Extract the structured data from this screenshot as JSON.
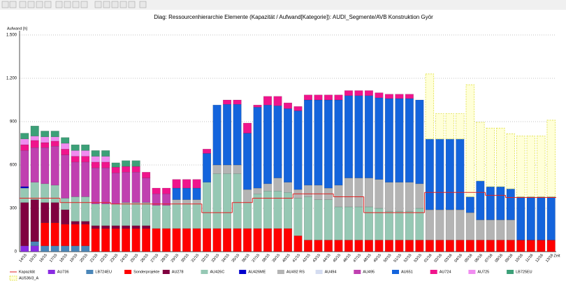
{
  "chart_data": {
    "type": "bar",
    "stacked": true,
    "title": "Diag: Ressourcenhierarchie Elemente (Kapazität / Aufwand[Kategorie]): AUDI_Segmente/AVB Konstruktion Györ",
    "y_label": "Aufwand [h]",
    "x_label": "Zeit",
    "categories": [
      "14/15",
      "15/15",
      "16/15",
      "17/15",
      "18/15",
      "19/15",
      "20/15",
      "21/15",
      "22/15",
      "23/15",
      "24/15",
      "25/15",
      "26/15",
      "27/15",
      "28/15",
      "29/15",
      "30/15",
      "31/15",
      "32/15",
      "33/15",
      "34/15",
      "35/15",
      "36/15",
      "37/15",
      "38/15",
      "39/15",
      "40/15",
      "41/15",
      "42/15",
      "43/15",
      "44/15",
      "45/15",
      "46/15",
      "47/15",
      "48/15",
      "49/15",
      "50/15",
      "51/15",
      "52/15",
      "53/15",
      "01/16",
      "02/16",
      "03/16",
      "04/16",
      "05/16",
      "06/16",
      "07/16",
      "08/16",
      "09/16",
      "10/16",
      "11/16",
      "12/16",
      "13/16"
    ],
    "ylim": [
      0,
      1500
    ],
    "yticks": [
      0,
      300,
      600,
      900,
      {
        "value": 1200,
        "label": "1.200"
      },
      {
        "value": 1500,
        "label": "1.500"
      }
    ],
    "grid": true,
    "series": [
      {
        "name": "Kapazität",
        "type": "line",
        "color": "#e02020",
        "values": [
          370,
          370,
          370,
          370,
          340,
          340,
          340,
          340,
          340,
          330,
          330,
          330,
          330,
          330,
          330,
          330,
          330,
          330,
          270,
          270,
          270,
          340,
          340,
          370,
          370,
          370,
          370,
          400,
          400,
          400,
          400,
          380,
          380,
          380,
          270,
          270,
          270,
          270,
          270,
          270,
          410,
          410,
          410,
          410,
          410,
          410,
          390,
          390,
          375,
          375,
          375,
          375,
          375
        ]
      },
      {
        "name": "AU736",
        "color": "#8a2be2",
        "values": [
          40,
          40,
          0,
          0,
          0,
          0,
          0,
          0,
          0,
          0,
          0,
          0,
          0,
          0,
          0,
          0,
          0,
          0,
          0,
          0,
          0,
          0,
          0,
          0,
          0,
          0,
          0,
          0,
          0,
          0,
          0,
          0,
          0,
          0,
          0,
          0,
          0,
          0,
          0,
          0,
          0,
          0,
          0,
          0,
          0,
          0,
          0,
          0,
          0,
          0,
          0,
          0,
          0
        ]
      },
      {
        "name": "LB724EU",
        "color": "#4a86b8",
        "values": [
          0,
          30,
          40,
          40,
          40,
          40,
          40,
          0,
          0,
          0,
          0,
          0,
          0,
          0,
          0,
          0,
          0,
          0,
          0,
          0,
          0,
          0,
          0,
          0,
          0,
          0,
          0,
          0,
          0,
          0,
          0,
          0,
          0,
          0,
          0,
          0,
          0,
          0,
          0,
          0,
          0,
          0,
          0,
          0,
          0,
          0,
          0,
          0,
          0,
          0,
          0,
          0,
          0
        ]
      },
      {
        "name": "Sonderprojekte",
        "color": "#ff0000",
        "values": [
          0,
          0,
          160,
          160,
          150,
          150,
          150,
          160,
          160,
          160,
          160,
          160,
          160,
          160,
          160,
          160,
          160,
          160,
          160,
          160,
          160,
          160,
          160,
          160,
          160,
          160,
          160,
          110,
          80,
          80,
          80,
          80,
          80,
          80,
          80,
          80,
          80,
          80,
          80,
          80,
          80,
          80,
          80,
          80,
          80,
          80,
          80,
          80,
          80,
          80,
          80,
          80,
          80
        ]
      },
      {
        "name": "AU278",
        "color": "#800040",
        "values": [
          300,
          290,
          140,
          140,
          100,
          20,
          20,
          20,
          20,
          20,
          20,
          20,
          20,
          0,
          0,
          0,
          0,
          0,
          0,
          0,
          0,
          0,
          0,
          0,
          0,
          0,
          0,
          0,
          0,
          0,
          0,
          0,
          0,
          0,
          0,
          0,
          0,
          0,
          0,
          0,
          0,
          0,
          0,
          0,
          0,
          0,
          0,
          0,
          0,
          0,
          0,
          0,
          0
        ]
      },
      {
        "name": "AU426C",
        "color": "#96c8b4",
        "values": [
          100,
          120,
          130,
          120,
          80,
          170,
          170,
          150,
          150,
          150,
          160,
          160,
          160,
          160,
          160,
          170,
          170,
          170,
          320,
          380,
          380,
          380,
          180,
          240,
          260,
          260,
          250,
          260,
          300,
          280,
          280,
          230,
          230,
          230,
          230,
          220,
          200,
          200,
          200,
          220,
          0,
          0,
          0,
          0,
          0,
          0,
          0,
          0,
          0,
          0,
          0,
          0,
          0
        ]
      },
      {
        "name": "AU426ME",
        "color": "#0000cd",
        "values": [
          10,
          0,
          0,
          0,
          0,
          0,
          0,
          0,
          0,
          0,
          0,
          0,
          0,
          0,
          0,
          0,
          0,
          0,
          0,
          0,
          0,
          0,
          0,
          0,
          0,
          0,
          0,
          0,
          0,
          0,
          0,
          0,
          0,
          0,
          0,
          0,
          0,
          0,
          0,
          0,
          0,
          0,
          0,
          0,
          0,
          0,
          0,
          0,
          0,
          0,
          0,
          0,
          0
        ]
      },
      {
        "name": "AU492 RS",
        "color": "#b4b4b4",
        "values": [
          0,
          0,
          0,
          0,
          0,
          0,
          0,
          0,
          0,
          0,
          0,
          0,
          0,
          0,
          0,
          30,
          30,
          30,
          0,
          60,
          60,
          60,
          90,
          40,
          50,
          90,
          70,
          60,
          80,
          100,
          80,
          150,
          200,
          200,
          200,
          200,
          200,
          200,
          200,
          170,
          210,
          210,
          210,
          210,
          190,
          140,
          140,
          140,
          140,
          0,
          0,
          0,
          0
        ]
      },
      {
        "name": "AU494",
        "color": "#d4dcf0",
        "values": [
          0,
          0,
          0,
          0,
          0,
          0,
          0,
          0,
          0,
          0,
          0,
          0,
          0,
          0,
          0,
          0,
          0,
          0,
          0,
          0,
          0,
          0,
          0,
          0,
          0,
          0,
          0,
          0,
          0,
          0,
          0,
          0,
          0,
          0,
          0,
          0,
          0,
          0,
          0,
          0,
          0,
          0,
          0,
          0,
          0,
          0,
          0,
          0,
          0,
          0,
          0,
          0,
          0
        ]
      },
      {
        "name": "AU495",
        "color": "#c040b0",
        "values": [
          250,
          240,
          250,
          270,
          300,
          240,
          240,
          250,
          250,
          215,
          210,
          210,
          170,
          80,
          80,
          0,
          0,
          0,
          0,
          0,
          0,
          0,
          0,
          0,
          0,
          0,
          0,
          0,
          0,
          0,
          0,
          0,
          0,
          0,
          0,
          0,
          0,
          0,
          0,
          0,
          0,
          0,
          0,
          0,
          0,
          0,
          0,
          0,
          0,
          0,
          0,
          0,
          0
        ]
      },
      {
        "name": "AU651",
        "color": "#1464dc",
        "values": [
          0,
          0,
          0,
          0,
          0,
          0,
          0,
          0,
          0,
          0,
          0,
          0,
          0,
          0,
          0,
          80,
          80,
          80,
          200,
          415,
          420,
          420,
          390,
          560,
          545,
          500,
          510,
          545,
          590,
          590,
          610,
          590,
          570,
          570,
          570,
          565,
          580,
          580,
          580,
          580,
          490,
          490,
          490,
          490,
          110,
          270,
          230,
          230,
          215,
          300,
          300,
          300,
          300
        ]
      },
      {
        "name": "AU724",
        "color": "#f0148c",
        "values": [
          40,
          50,
          35,
          35,
          40,
          40,
          40,
          40,
          40,
          40,
          40,
          40,
          40,
          40,
          40,
          60,
          60,
          60,
          30,
          0,
          30,
          30,
          70,
          15,
          60,
          65,
          40,
          30,
          35,
          35,
          35,
          35,
          35,
          35,
          35,
          35,
          30,
          30,
          30,
          0,
          0,
          0,
          0,
          0,
          0,
          0,
          0,
          0,
          0,
          0,
          0,
          0,
          0
        ]
      },
      {
        "name": "AU725",
        "color": "#f08cf0",
        "values": [
          40,
          30,
          40,
          30,
          40,
          40,
          40,
          40,
          40,
          0,
          0,
          0,
          0,
          0,
          0,
          0,
          0,
          0,
          0,
          0,
          0,
          0,
          0,
          0,
          0,
          0,
          0,
          0,
          0,
          0,
          0,
          0,
          0,
          0,
          0,
          0,
          0,
          0,
          0,
          0,
          0,
          0,
          0,
          0,
          0,
          0,
          0,
          0,
          0,
          0,
          0,
          0,
          0
        ]
      },
      {
        "name": "LB725EU",
        "color": "#3ca078",
        "values": [
          40,
          70,
          40,
          40,
          40,
          40,
          40,
          40,
          40,
          30,
          40,
          40,
          0,
          0,
          0,
          0,
          0,
          0,
          0,
          0,
          0,
          0,
          0,
          0,
          0,
          0,
          0,
          0,
          0,
          0,
          0,
          0,
          0,
          0,
          0,
          0,
          0,
          0,
          0,
          0,
          0,
          0,
          0,
          0,
          0,
          0,
          0,
          0,
          0,
          0,
          0,
          0,
          0
        ]
      },
      {
        "name": "AU536/3_A",
        "color": "#ffffd8",
        "dashed": true,
        "values": [
          0,
          0,
          0,
          0,
          0,
          0,
          0,
          0,
          0,
          0,
          0,
          0,
          0,
          0,
          0,
          0,
          0,
          0,
          0,
          0,
          0,
          0,
          0,
          0,
          0,
          0,
          0,
          0,
          0,
          0,
          0,
          0,
          0,
          0,
          0,
          0,
          0,
          0,
          0,
          0,
          450,
          175,
          175,
          175,
          775,
          405,
          405,
          405,
          380,
          420,
          420,
          420,
          530
        ]
      }
    ]
  }
}
